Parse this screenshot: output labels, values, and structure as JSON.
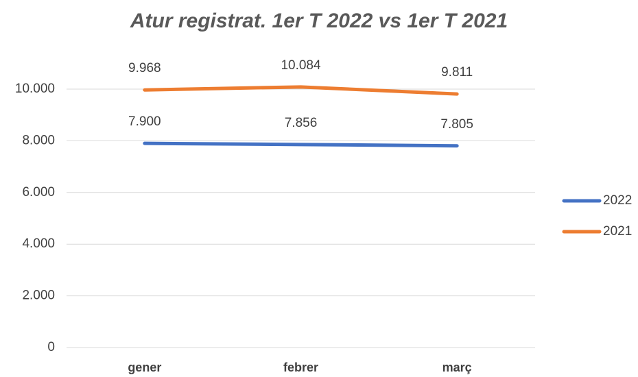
{
  "chart_data": {
    "type": "line",
    "title": "Atur registrat. 1er T 2022 vs 1er T 2021",
    "categories": [
      "gener",
      "febrer",
      "març"
    ],
    "series": [
      {
        "name": "2022",
        "color": "#4472c4",
        "values": [
          7900,
          7856,
          7805
        ],
        "value_labels": [
          "7.900",
          "7.856",
          "7.805"
        ]
      },
      {
        "name": "2021",
        "color": "#ed7d31",
        "values": [
          9968,
          10084,
          9811
        ],
        "value_labels": [
          "9.968",
          "10.084",
          "9.811"
        ]
      }
    ],
    "ylim": [
      0,
      10000
    ],
    "yticks": [
      0,
      {
        "value": 2000,
        "label": "2.000"
      },
      {
        "value": 4000,
        "label": "4.000"
      },
      {
        "value": 6000,
        "label": "6.000"
      },
      {
        "value": 8000,
        "label": "8.000"
      },
      {
        "value": 10000,
        "label": "10.000"
      }
    ],
    "grid": true,
    "legend": "right"
  }
}
